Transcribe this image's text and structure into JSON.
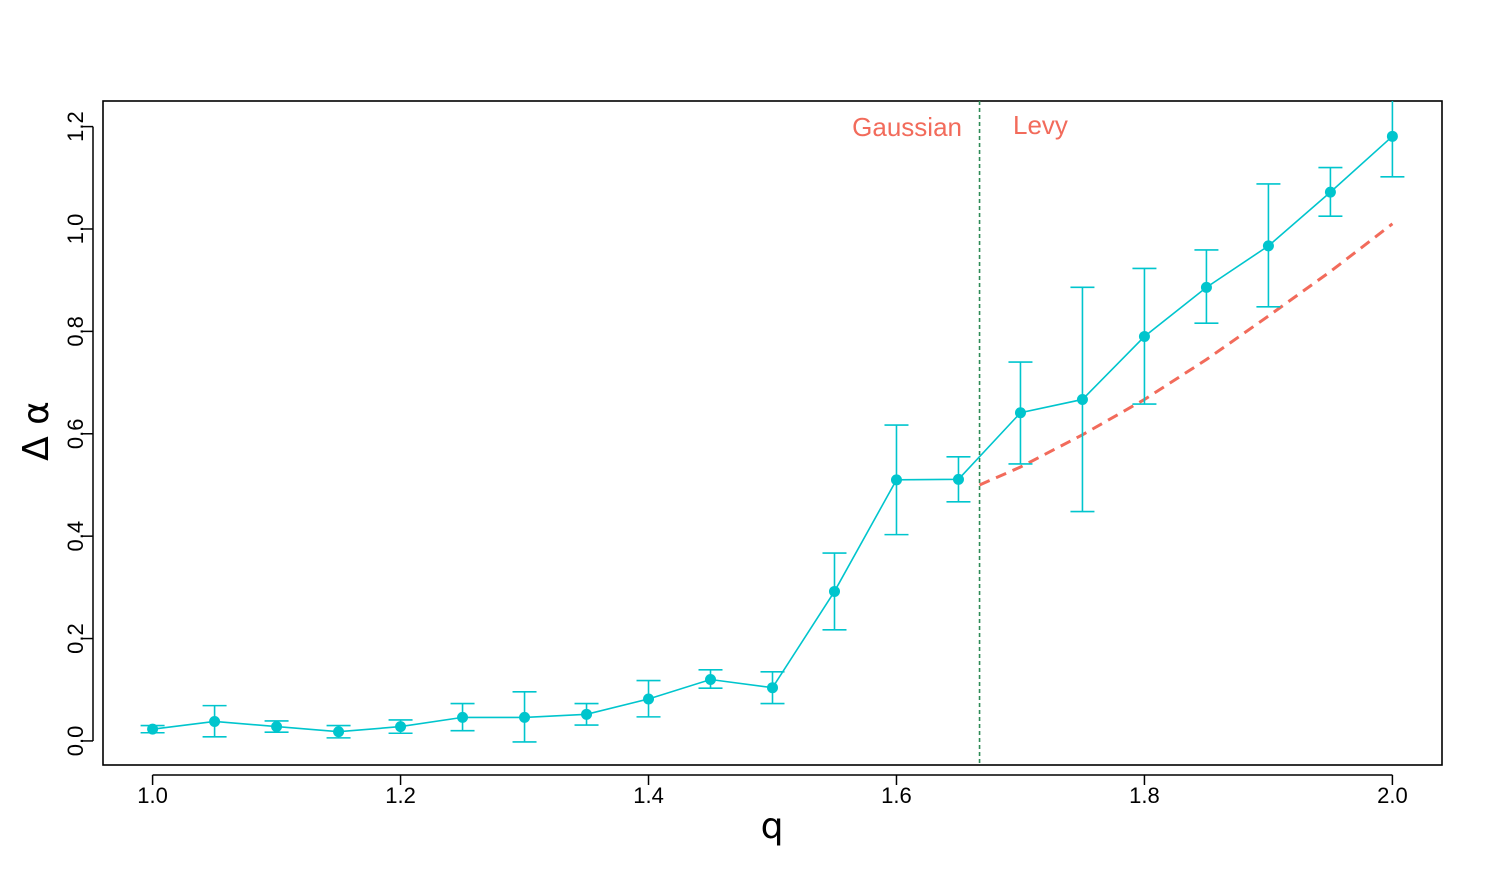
{
  "chart_data": {
    "type": "line",
    "xlabel": "q",
    "ylabel": "Δ α",
    "xlim": [
      0.96,
      2.04
    ],
    "ylim": [
      -0.047,
      1.25
    ],
    "xticks": [
      "1.0",
      "1.2",
      "1.4",
      "1.6",
      "1.8",
      "2.0"
    ],
    "yticks": [
      "0.0",
      "0.2",
      "0.4",
      "0.6",
      "0.8",
      "1.0",
      "1.2"
    ],
    "grid": false,
    "series": [
      {
        "style": "points with error bars",
        "color": "#00C5CD",
        "x": [
          1.0,
          1.05,
          1.1,
          1.15,
          1.2,
          1.25,
          1.3,
          1.35,
          1.4,
          1.45,
          1.5,
          1.55,
          1.6,
          1.65,
          1.7,
          1.75,
          1.8,
          1.85,
          1.9,
          1.95,
          2.0
        ],
        "y": [
          0.023,
          0.038,
          0.028,
          0.018,
          0.028,
          0.046,
          0.046,
          0.052,
          0.082,
          0.12,
          0.104,
          0.292,
          0.51,
          0.511,
          0.641,
          0.667,
          0.79,
          0.886,
          0.967,
          1.072,
          1.181
        ],
        "y_low": [
          0.016,
          0.008,
          0.017,
          0.006,
          0.015,
          0.02,
          -0.002,
          0.031,
          0.047,
          0.103,
          0.073,
          0.217,
          0.403,
          0.467,
          0.541,
          0.448,
          0.658,
          0.816,
          0.848,
          1.025,
          1.102
        ],
        "y_high": [
          0.03,
          0.069,
          0.039,
          0.03,
          0.041,
          0.073,
          0.096,
          0.073,
          0.118,
          0.139,
          0.135,
          0.367,
          0.617,
          0.555,
          0.74,
          0.886,
          0.923,
          0.959,
          1.088,
          1.12,
          1.26
        ]
      },
      {
        "style": "dashed line",
        "color": "#F26B5B",
        "x": [
          1.667,
          1.7,
          1.75,
          1.8,
          1.85,
          1.9,
          1.95,
          2.0
        ],
        "y": [
          0.5,
          0.535,
          0.598,
          0.667,
          0.745,
          0.83,
          0.917,
          1.01
        ]
      }
    ],
    "vline": {
      "x": 1.667,
      "color": "#2E8B57",
      "style": "dotted"
    },
    "annotations": [
      {
        "text": "Gaussian",
        "color": "#F26B5B"
      },
      {
        "text": "Levy",
        "color": "#F26B5B"
      }
    ]
  }
}
